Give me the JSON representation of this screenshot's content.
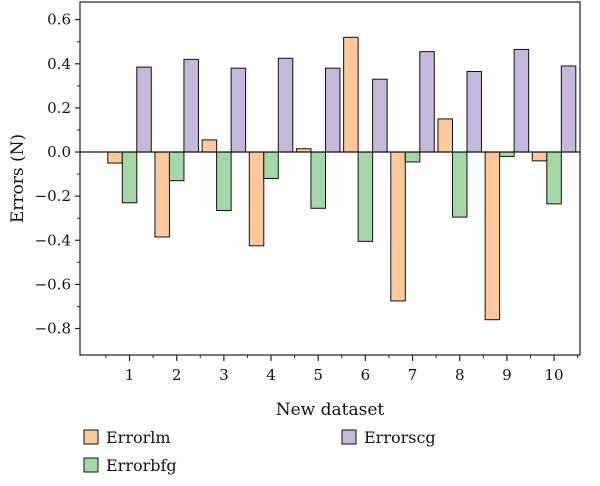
{
  "chart_data": {
    "type": "bar",
    "title": "",
    "xlabel": "New dataset",
    "ylabel": "Errors (N)",
    "categories": [
      "1",
      "2",
      "3",
      "4",
      "5",
      "6",
      "7",
      "8",
      "9",
      "10"
    ],
    "ylim": [
      -0.92,
      0.68
    ],
    "yticks": [
      -0.8,
      -0.6,
      -0.4,
      -0.2,
      0.0,
      0.2,
      0.4,
      0.6
    ],
    "ytick_labels": [
      "−0.8",
      "−0.6",
      "−0.4",
      "−0.2",
      "0.0",
      "0.2",
      "0.4",
      "0.6"
    ],
    "grid": false,
    "legend_position": "bottom",
    "series": [
      {
        "name": "Errorlm",
        "color": "#FDC99A",
        "values": [
          -0.05,
          -0.385,
          0.055,
          -0.425,
          0.015,
          0.52,
          -0.675,
          0.15,
          -0.76,
          -0.04
        ]
      },
      {
        "name": "Errorbfg",
        "color": "#A4D8A6",
        "values": [
          -0.23,
          -0.13,
          -0.265,
          -0.12,
          -0.255,
          -0.405,
          -0.045,
          -0.295,
          -0.02,
          -0.235
        ]
      },
      {
        "name": "Errorscg",
        "color": "#C6B8DC",
        "values": [
          0.385,
          0.42,
          0.38,
          0.425,
          0.38,
          0.33,
          0.455,
          0.365,
          0.465,
          0.39
        ]
      }
    ]
  }
}
